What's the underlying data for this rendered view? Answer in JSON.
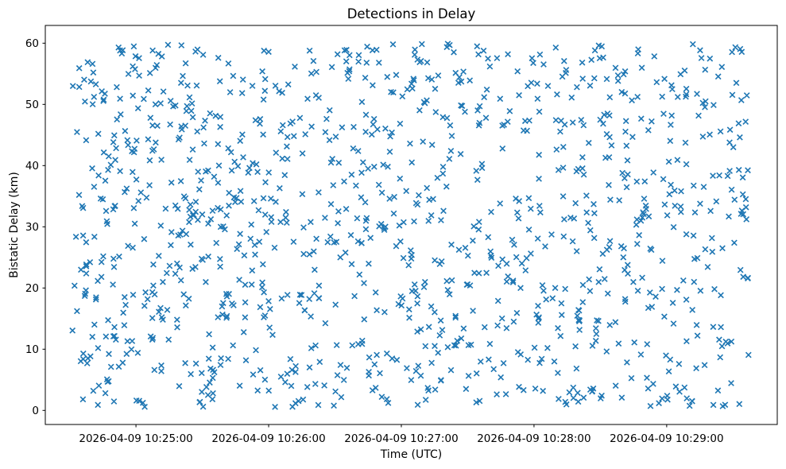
{
  "figure": {
    "title": "Detections in Delay",
    "xlabel": "Time (UTC)",
    "ylabel": "Bistatic Delay (km)"
  },
  "chart_data": {
    "type": "scatter",
    "title": "Detections in Delay",
    "xlabel": "Time (UTC)",
    "ylabel": "Bistatic Delay (km)",
    "marker": "x",
    "marker_color": "#1f77b4",
    "background_color": "#ffffff",
    "grid": false,
    "legend": null,
    "x_axis_start_utc": "2026-04-09 10:24:19",
    "x_axis_end_utc": "2026-04-09 10:29:50",
    "x_span_s": 331,
    "x_ticks": [
      {
        "label": "2026-04-09 10:25:00",
        "s": 41
      },
      {
        "label": "2026-04-09 10:26:00",
        "s": 101
      },
      {
        "label": "2026-04-09 10:27:00",
        "s": 161
      },
      {
        "label": "2026-04-09 10:28:00",
        "s": 221
      },
      {
        "label": "2026-04-09 10:29:00",
        "s": 281
      }
    ],
    "y_ticks": [
      0,
      10,
      20,
      30,
      40,
      50,
      60
    ],
    "ylim": [
      -2.3,
      62.9
    ],
    "n_points": 1200,
    "points": {
      "distribution": "uniform",
      "seed": 20260409,
      "t_min_s": 12,
      "t_max_s": 318,
      "t_min_utc": "2026-04-09 10:24:31",
      "t_max_utc": "2026-04-09 10:29:37",
      "y_min_km": 0.3,
      "y_max_km": 59.9
    }
  }
}
